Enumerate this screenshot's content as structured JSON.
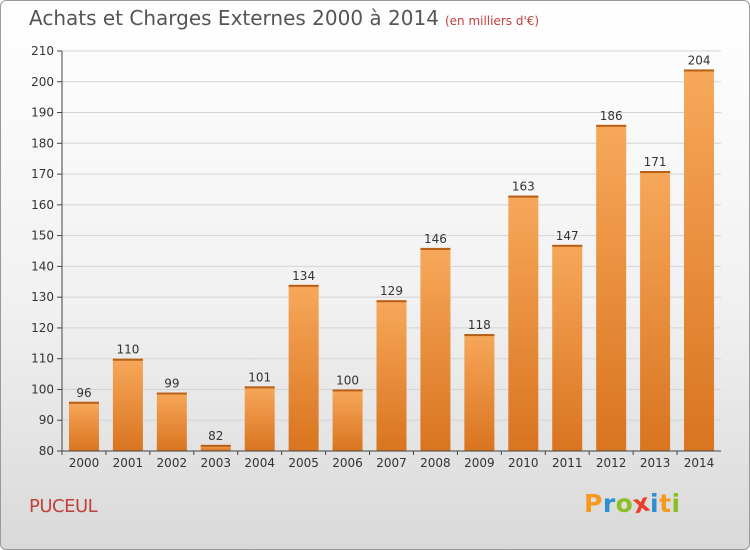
{
  "header": {
    "title": "Achats et Charges Externes 2000 à 2014",
    "unit": "(en milliers d'€)"
  },
  "footer": {
    "place": "PUCEUL",
    "brand_letters": [
      {
        "ch": "P",
        "color": "#f59a1e"
      },
      {
        "ch": "r",
        "color": "#2d8fd2"
      },
      {
        "ch": "o",
        "color": "#8cbf26"
      },
      {
        "ch": "x",
        "color": "#e8402a"
      },
      {
        "ch": "i",
        "color": "#2d8fd2"
      },
      {
        "ch": "t",
        "color": "#f59a1e"
      },
      {
        "ch": "i",
        "color": "#8cbf26"
      }
    ]
  },
  "colors": {
    "bar_light": "#f7a85a",
    "bar_dark": "#d9741f",
    "accent_red": "#c1403c",
    "grid": "#d4d4d4",
    "axis": "#444444"
  },
  "chart_data": {
    "type": "bar",
    "categories": [
      "2000",
      "2001",
      "2002",
      "2003",
      "2004",
      "2005",
      "2006",
      "2007",
      "2008",
      "2009",
      "2010",
      "2011",
      "2012",
      "2013",
      "2014"
    ],
    "values": [
      96,
      110,
      99,
      82,
      101,
      134,
      100,
      129,
      146,
      118,
      163,
      147,
      186,
      171,
      204
    ],
    "title": "Achats et Charges Externes 2000 à 2014",
    "subtitle": "(en milliers d'€)",
    "xlabel": "",
    "ylabel": "",
    "ylim": [
      80,
      210
    ],
    "yticks": [
      80,
      90,
      100,
      110,
      120,
      130,
      140,
      150,
      160,
      170,
      180,
      190,
      200,
      210
    ],
    "grid": true,
    "data_labels": true
  }
}
